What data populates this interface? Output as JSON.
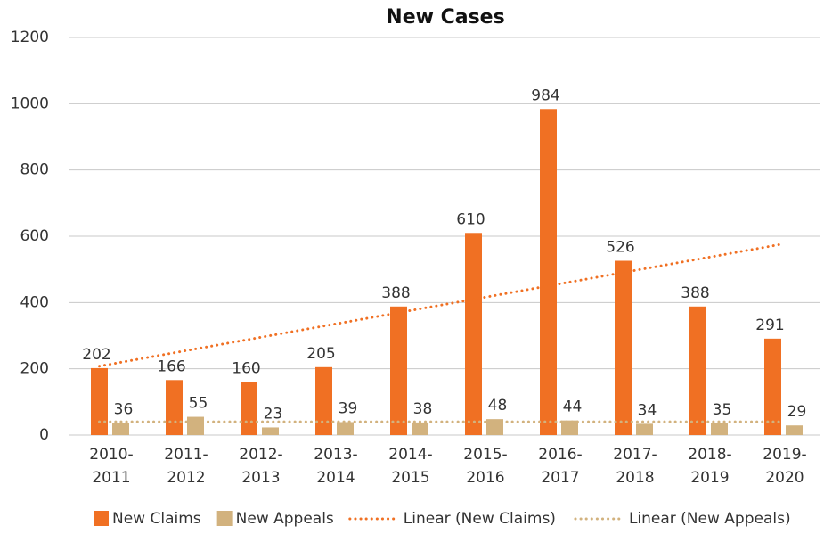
{
  "chart_data": {
    "type": "bar",
    "title": "New Cases",
    "categories": [
      "2010-2011",
      "2011-2012",
      "2012-2013",
      "2013-2014",
      "2014-2015",
      "2015-2016",
      "2016-2017",
      "2017-2018",
      "2018-2019",
      "2019-2020"
    ],
    "series": [
      {
        "name": "New Claims",
        "color": "#f07023",
        "values": [
          202,
          166,
          160,
          205,
          388,
          610,
          984,
          526,
          388,
          291
        ]
      },
      {
        "name": "New Appeals",
        "color": "#d2b27e",
        "values": [
          36,
          55,
          23,
          39,
          38,
          48,
          44,
          34,
          35,
          29
        ]
      }
    ],
    "trendlines": [
      {
        "name": "Linear (New Claims)",
        "color": "#f07023",
        "values": [
          208,
          576
        ]
      },
      {
        "name": "Linear (New Appeals)",
        "color": "#d2b27e",
        "values": [
          40,
          40
        ]
      }
    ],
    "ylim": [
      0,
      1200
    ],
    "yticks": [
      0,
      200,
      400,
      600,
      800,
      1000,
      1200
    ],
    "grid": true
  }
}
